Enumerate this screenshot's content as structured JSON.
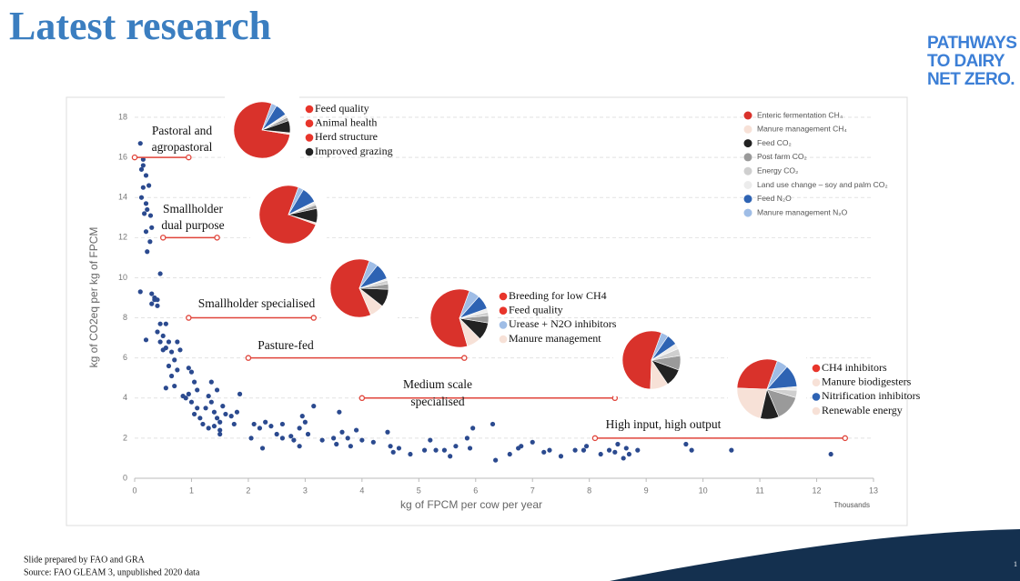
{
  "header": {
    "title": "Latest research",
    "logo": [
      "PATHWAYS",
      "TO DAIRY",
      "NET ZERO."
    ]
  },
  "footer": {
    "notes": [
      "Slide prepared by FAO and GRA",
      "Source: FAO GLEAM 3, unpublished 2020 data"
    ],
    "page": "1"
  },
  "chart_data": {
    "type": "scatter",
    "x_label": "kg of FPCM per cow per year",
    "y_label": "kg of CO2eq per kg of FPCM",
    "x_unit": "Thousands",
    "xlim": [
      0,
      13
    ],
    "xticks": [
      0,
      1,
      2,
      3,
      4,
      5,
      6,
      7,
      8,
      9,
      10,
      11,
      12,
      13
    ],
    "ylim": [
      0,
      18
    ],
    "yticks": [
      0,
      2,
      4,
      6,
      8,
      10,
      12,
      14,
      16,
      18
    ],
    "grid": true,
    "color": "#2b4a8f",
    "x": [
      0.1,
      0.15,
      0.15,
      0.12,
      0.2,
      0.25,
      0.15,
      0.12,
      0.2,
      0.22,
      0.17,
      0.28,
      0.3,
      0.2,
      0.27,
      0.22,
      0.45,
      0.1,
      0.3,
      0.35,
      0.4,
      0.3,
      0.4,
      0.35,
      0.45,
      0.55,
      0.4,
      0.5,
      0.2,
      0.45,
      0.6,
      0.55,
      0.5,
      0.65,
      0.75,
      0.8,
      0.7,
      0.6,
      0.65,
      0.75,
      0.7,
      0.55,
      0.85,
      0.9,
      0.95,
      1.0,
      1.05,
      0.95,
      1.1,
      1.0,
      1.1,
      1.05,
      1.15,
      1.2,
      1.25,
      1.3,
      1.35,
      1.4,
      1.45,
      1.5,
      1.4,
      1.5,
      1.35,
      1.45,
      1.55,
      1.6,
      1.7,
      1.75,
      1.8,
      1.85,
      1.5,
      1.3,
      2.05,
      2.1,
      2.2,
      2.3,
      2.4,
      2.5,
      2.6,
      2.25,
      2.6,
      2.75,
      2.8,
      2.9,
      2.95,
      3.0,
      3.05,
      3.15,
      2.9,
      3.3,
      3.5,
      3.55,
      3.65,
      3.75,
      3.8,
      3.6,
      3.9,
      4.0,
      4.2,
      4.45,
      4.5,
      4.55,
      4.65,
      4.85,
      5.1,
      5.2,
      5.3,
      5.45,
      5.55,
      5.65,
      5.85,
      5.9,
      5.95,
      6.3,
      6.35,
      6.6,
      6.75,
      6.8,
      7.0,
      7.2,
      7.3,
      7.5,
      7.75,
      7.9,
      7.95,
      8.2,
      8.35,
      8.45,
      8.5,
      8.6,
      8.65,
      8.7,
      8.85,
      9.7,
      9.8,
      10.5,
      12.25
    ],
    "y": [
      16.7,
      15.9,
      15.6,
      15.4,
      15.1,
      14.6,
      14.5,
      14.0,
      13.7,
      13.4,
      13.2,
      13.1,
      12.5,
      12.3,
      11.8,
      11.3,
      10.2,
      9.3,
      9.2,
      9.0,
      8.9,
      8.7,
      8.6,
      8.9,
      7.7,
      7.7,
      7.3,
      7.1,
      6.9,
      6.8,
      6.8,
      6.5,
      6.4,
      6.3,
      6.8,
      6.4,
      5.9,
      5.6,
      5.1,
      5.4,
      4.6,
      4.5,
      4.1,
      4.0,
      5.5,
      5.3,
      4.8,
      4.2,
      4.4,
      3.8,
      3.5,
      3.2,
      3.0,
      2.7,
      3.5,
      4.1,
      3.8,
      3.3,
      3.0,
      2.8,
      2.6,
      2.4,
      4.8,
      4.4,
      3.6,
      3.2,
      3.1,
      2.7,
      3.3,
      4.2,
      2.2,
      2.5,
      2.0,
      2.7,
      2.5,
      2.8,
      2.6,
      2.2,
      2.0,
      1.5,
      2.7,
      2.1,
      1.9,
      2.5,
      3.1,
      2.8,
      2.2,
      3.6,
      1.6,
      1.9,
      2.0,
      1.7,
      2.3,
      2.0,
      1.6,
      3.3,
      2.4,
      1.9,
      1.8,
      2.3,
      1.6,
      1.3,
      1.5,
      1.2,
      1.4,
      1.9,
      1.4,
      1.4,
      1.1,
      1.6,
      2.0,
      1.5,
      2.5,
      2.7,
      0.9,
      1.2,
      1.5,
      1.6,
      1.8,
      1.3,
      1.4,
      1.1,
      1.4,
      1.4,
      1.6,
      1.2,
      1.4,
      1.3,
      1.7,
      1.0,
      1.5,
      1.2,
      1.4,
      1.7,
      1.4,
      1.4,
      1.2
    ],
    "ranges": [
      {
        "label": [
          "Pastoral and",
          "agropastoral"
        ],
        "x": [
          0,
          0.95
        ],
        "y": 16
      },
      {
        "label": [
          "Smallholder",
          "dual purpose"
        ],
        "x": [
          0.5,
          1.45
        ],
        "y": 12
      },
      {
        "label": [
          "Smallholder specialised"
        ],
        "x": [
          0.95,
          3.15
        ],
        "y": 8
      },
      {
        "label": [
          "Pasture-fed"
        ],
        "x": [
          2,
          5.8
        ],
        "y": 6
      },
      {
        "label": [
          "Medium scale",
          "specialised"
        ],
        "x": [
          4,
          8.45
        ],
        "y": 4
      },
      {
        "label": [
          "High input, high output"
        ],
        "x": [
          8.1,
          12.5
        ],
        "y": 2
      }
    ],
    "pie_legend": {
      "labels": [
        "Enteric fermentation CH₄",
        "Manure management CH₄",
        "Feed CO₂",
        "Post farm CO₂",
        "Energy CO₂",
        "Land use change – soy and palm CO₂",
        "Feed N₂O",
        "Manure management N₂O"
      ],
      "colors": [
        "#d9322b",
        "#f7e1d7",
        "#222222",
        "#9a9a9a",
        "#cfcfcf",
        "#ececec",
        "#2e63b3",
        "#9fbde6"
      ]
    },
    "pies": [
      {
        "values": [
          78,
          1,
          7,
          2,
          1,
          1,
          7,
          3
        ]
      },
      {
        "values": [
          75,
          1,
          8,
          2,
          1,
          1,
          9,
          3
        ]
      },
      {
        "values": [
          62,
          8,
          10,
          3,
          2,
          1,
          9,
          5
        ]
      },
      {
        "values": [
          60,
          8,
          10,
          4,
          2,
          2,
          8,
          6
        ]
      },
      {
        "values": [
          55,
          10,
          10,
          8,
          4,
          3,
          6,
          4
        ]
      },
      {
        "values": [
          30,
          22,
          10,
          14,
          4,
          2,
          12,
          6
        ]
      }
    ],
    "measures": [
      {
        "labels": [
          "Feed quality",
          "Animal health",
          "Herd structure",
          "Improved grazing"
        ],
        "colors": [
          "#e8352b",
          "#e8352b",
          "#e8352b",
          "#222222"
        ]
      },
      {
        "labels": [
          "Breeding for low CH4",
          "Feed quality",
          "Urease + N2O inhibitors",
          "Manure management"
        ],
        "colors": [
          "#e8352b",
          "#e8352b",
          "#9fbde6",
          "#f7e1d7"
        ]
      },
      {
        "labels": [
          "CH4 inhibitors",
          "Manure biodigesters",
          "Nitrification inhibitors",
          "Renewable energy"
        ],
        "colors": [
          "#e8352b",
          "#f7e1d7",
          "#2e63b3",
          "#f7e1d7"
        ]
      }
    ]
  }
}
